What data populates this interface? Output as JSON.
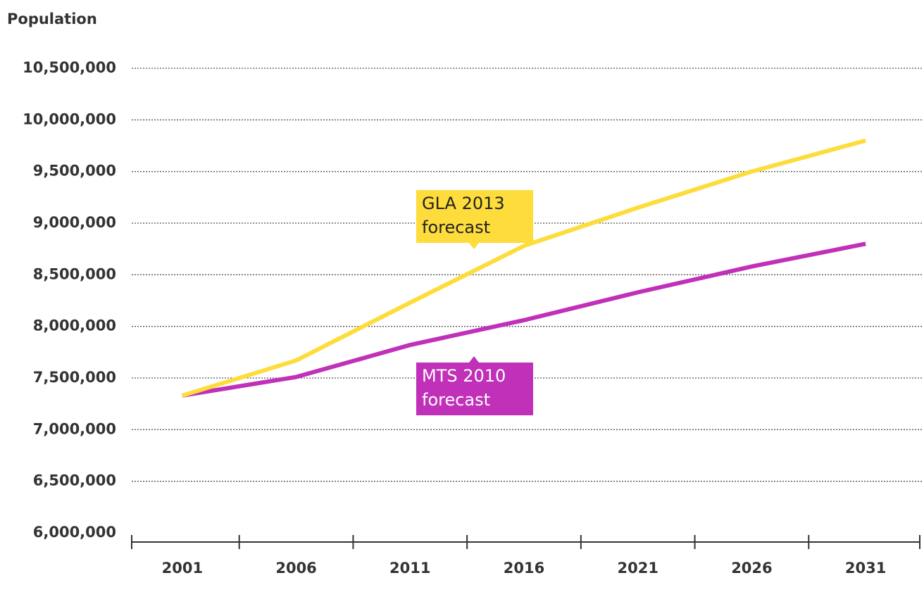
{
  "chart_data": {
    "type": "line",
    "y_label": "Population",
    "categories": [
      "2001",
      "2006",
      "2011",
      "2016",
      "2021",
      "2026",
      "2031"
    ],
    "series": [
      {
        "name": "GLA 2013 forecast",
        "color": "#fddc3c",
        "values": [
          7330000,
          7670000,
          8230000,
          8780000,
          9150000,
          9500000,
          9800000
        ]
      },
      {
        "name": "MTS 2010 forecast",
        "color": "#c030b8",
        "values": [
          7330000,
          7510000,
          7820000,
          8060000,
          8330000,
          8580000,
          8800000
        ]
      }
    ],
    "annotations": [
      {
        "lines": [
          "GLA 2013",
          "forecast"
        ]
      },
      {
        "lines": [
          "MTS 2010",
          "forecast"
        ]
      }
    ],
    "ylim": [
      6000000,
      10500000
    ],
    "yticks": [
      {
        "value": 6000000,
        "label": "6,000,000"
      },
      {
        "value": 6500000,
        "label": "6,500,000"
      },
      {
        "value": 7000000,
        "label": "7,000,000"
      },
      {
        "value": 7500000,
        "label": "7,500,000"
      },
      {
        "value": 8000000,
        "label": "8,000,000"
      },
      {
        "value": 8500000,
        "label": "8,500,000"
      },
      {
        "value": 9000000,
        "label": "9,000,000"
      },
      {
        "value": 9500000,
        "label": "9,500,000"
      },
      {
        "value": 10000000,
        "label": "10,000,000"
      },
      {
        "value": 10500000,
        "label": "10,500,000"
      }
    ],
    "grid": true
  }
}
